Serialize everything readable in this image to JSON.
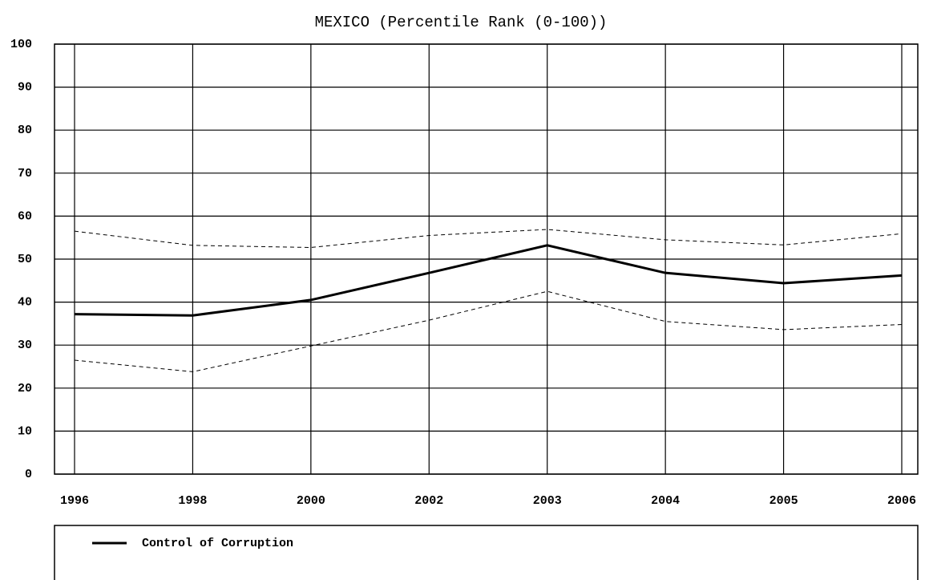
{
  "chart_data": {
    "type": "line",
    "title": "MEXICO (Percentile Rank (0-100))",
    "categories": [
      "1996",
      "1998",
      "2000",
      "2002",
      "2003",
      "2004",
      "2005",
      "2006"
    ],
    "series": [
      {
        "name": "Control of Corruption",
        "color": "#000000",
        "style": "solid",
        "values": [
          37.2,
          36.9,
          40.5,
          46.8,
          53.2,
          46.8,
          44.4,
          46.2
        ]
      },
      {
        "color": "#000000",
        "style": "dashed",
        "values": [
          56.5,
          53.2,
          52.7,
          55.5,
          56.9,
          54.5,
          53.3,
          55.9
        ]
      },
      {
        "color": "#000000",
        "style": "dashed",
        "values": [
          26.5,
          23.8,
          29.8,
          35.8,
          42.5,
          35.5,
          33.6,
          34.8
        ]
      }
    ],
    "ylim": [
      0,
      100
    ],
    "yticks": [
      0,
      10,
      20,
      30,
      40,
      50,
      60,
      70,
      80,
      90,
      100
    ],
    "grid": true
  }
}
